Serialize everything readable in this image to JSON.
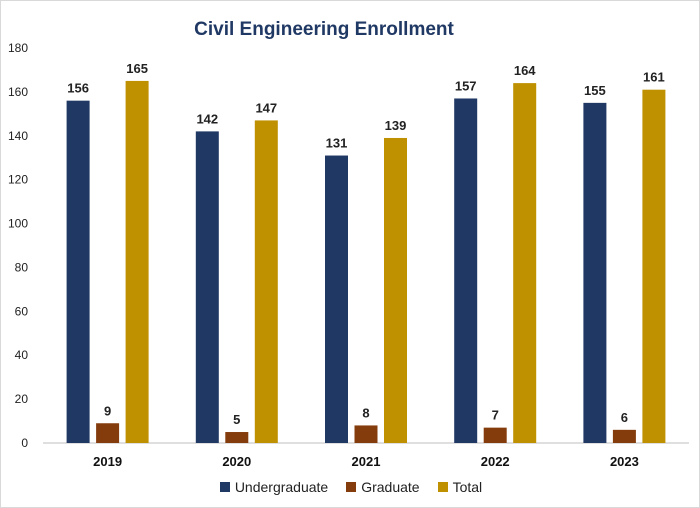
{
  "chart_data": {
    "type": "bar",
    "title": "Civil Engineering Enrollment",
    "xlabel": "",
    "ylabel": "",
    "categories": [
      "2019",
      "2020",
      "2021",
      "2022",
      "2023"
    ],
    "series": [
      {
        "name": "Undergraduate",
        "color": "#203864",
        "values": [
          156,
          142,
          131,
          157,
          155
        ]
      },
      {
        "name": "Graduate",
        "color": "#843c0c",
        "values": [
          9,
          5,
          8,
          7,
          6
        ]
      },
      {
        "name": "Total",
        "color": "#bf9000",
        "values": [
          165,
          147,
          139,
          164,
          161
        ]
      }
    ],
    "ylim": [
      0,
      180
    ],
    "yticks": [
      0,
      20,
      40,
      60,
      80,
      100,
      120,
      140,
      160,
      180
    ],
    "grid": false,
    "legend_position": "bottom"
  }
}
